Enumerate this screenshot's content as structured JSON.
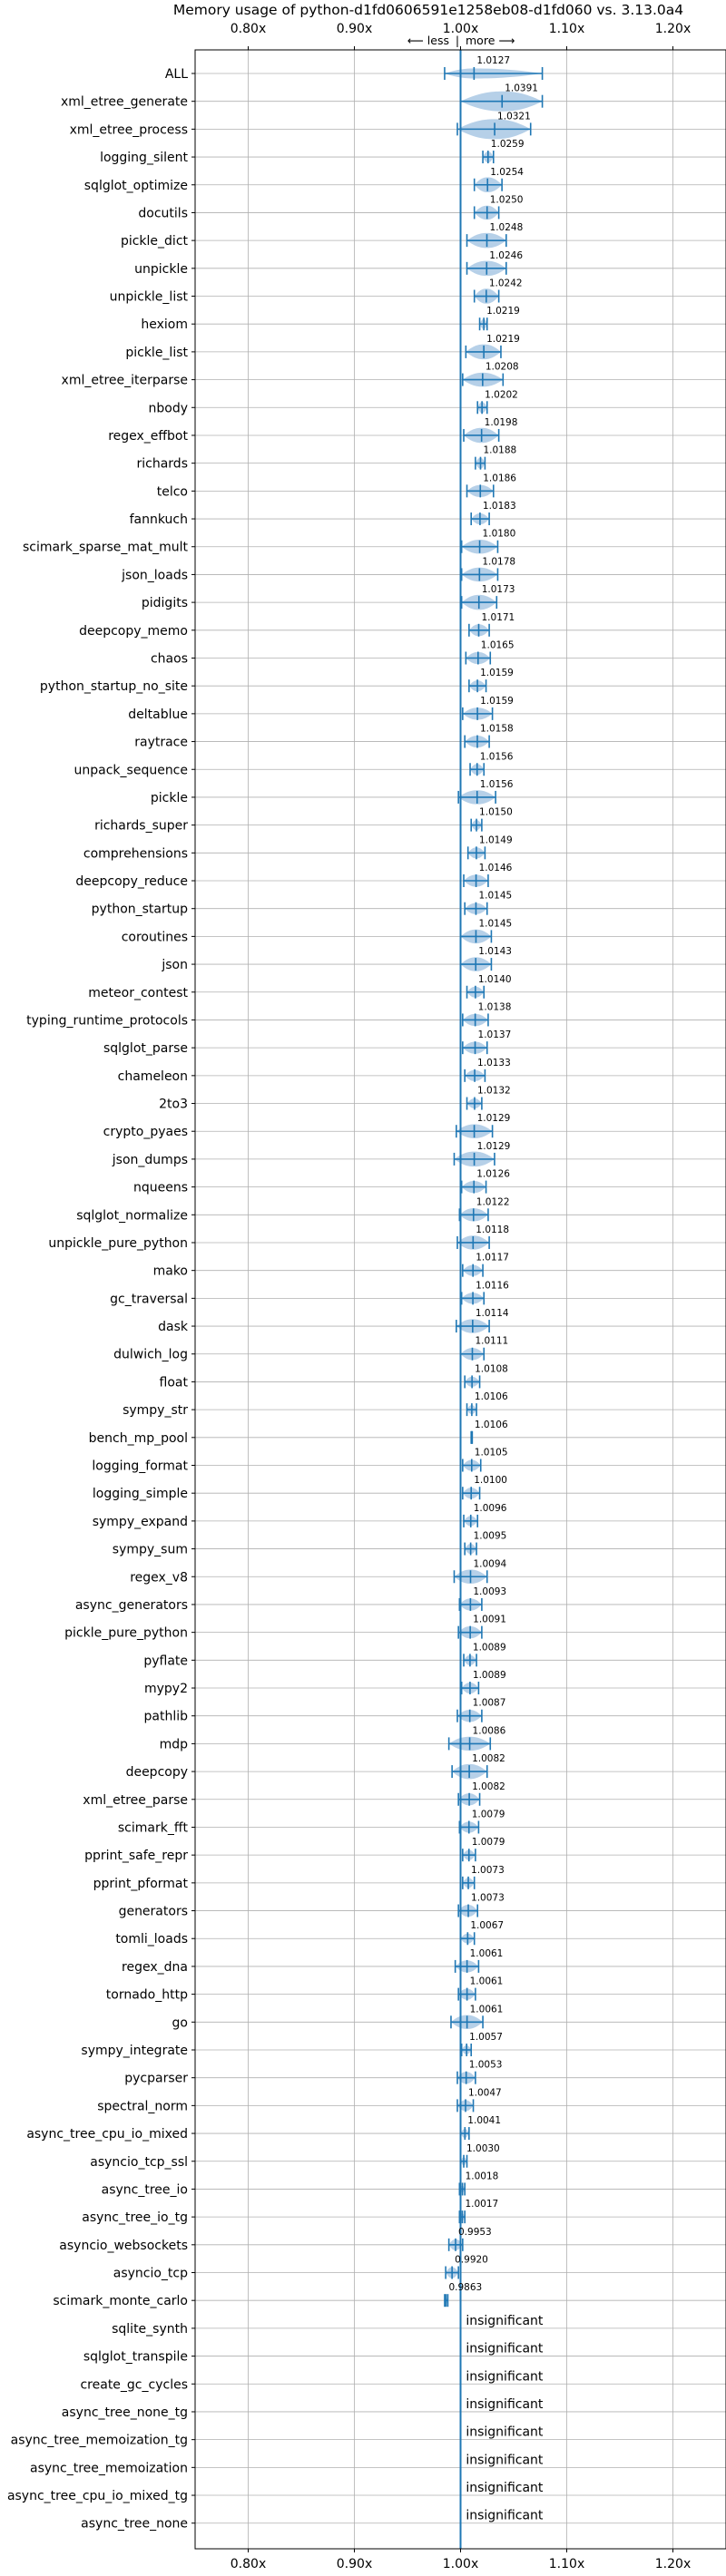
{
  "chart_data": {
    "type": "violin",
    "title": "Memory usage of python-d1fd0606591e1258eb08-d1fd060 vs. 3.13.0a4",
    "direction_hint": {
      "less": "⟵ less",
      "more": "more ⟶",
      "separator": "|"
    },
    "xlim": [
      0.75,
      1.25
    ],
    "xticks": [
      0.8,
      0.9,
      1.0,
      1.1,
      1.2
    ],
    "xtick_labels": [
      "0.80x",
      "0.90x",
      "1.00x",
      "1.10x",
      "1.20x"
    ],
    "reference_line": 1.0,
    "grid": true,
    "colors": {
      "violin": "#1f77b4",
      "fill": "#a9c8e4",
      "grid": "#b0b0b0",
      "axis": "#000000",
      "text": "#000000"
    },
    "benchmarks": [
      {
        "name": "ALL",
        "value": 1.0127,
        "label": "1.0127",
        "min": 0.985,
        "max": 1.077,
        "width": 0.5
      },
      {
        "name": "xml_etree_generate",
        "value": 1.0391,
        "label": "1.0391",
        "min": 1.0,
        "max": 1.077,
        "width": 1.0
      },
      {
        "name": "xml_etree_process",
        "value": 1.0321,
        "label": "1.0321",
        "min": 0.997,
        "max": 1.066,
        "width": 1.0
      },
      {
        "name": "logging_silent",
        "value": 1.0259,
        "label": "1.0259",
        "min": 1.021,
        "max": 1.031,
        "width": 0.55
      },
      {
        "name": "sqlglot_optimize",
        "value": 1.0254,
        "label": "1.0254",
        "min": 1.013,
        "max": 1.039,
        "width": 0.75
      },
      {
        "name": "docutils",
        "value": 1.025,
        "label": "1.0250",
        "min": 1.013,
        "max": 1.036,
        "width": 0.7
      },
      {
        "name": "pickle_dict",
        "value": 1.0248,
        "label": "1.0248",
        "min": 1.006,
        "max": 1.043,
        "width": 0.75
      },
      {
        "name": "unpickle",
        "value": 1.0246,
        "label": "1.0246",
        "min": 1.006,
        "max": 1.043,
        "width": 0.75
      },
      {
        "name": "unpickle_list",
        "value": 1.0242,
        "label": "1.0242",
        "min": 1.013,
        "max": 1.036,
        "width": 0.75
      },
      {
        "name": "hexiom",
        "value": 1.0219,
        "label": "1.0219",
        "min": 1.018,
        "max": 1.025,
        "width": 0.5
      },
      {
        "name": "pickle_list",
        "value": 1.0219,
        "label": "1.0219",
        "min": 1.005,
        "max": 1.038,
        "width": 0.75
      },
      {
        "name": "xml_etree_iterparse",
        "value": 1.0208,
        "label": "1.0208",
        "min": 1.002,
        "max": 1.04,
        "width": 0.7
      },
      {
        "name": "nbody",
        "value": 1.0202,
        "label": "1.0202",
        "min": 1.016,
        "max": 1.025,
        "width": 0.55
      },
      {
        "name": "regex_effbot",
        "value": 1.0198,
        "label": "1.0198",
        "min": 1.003,
        "max": 1.036,
        "width": 0.75
      },
      {
        "name": "richards",
        "value": 1.0188,
        "label": "1.0188",
        "min": 1.014,
        "max": 1.023,
        "width": 0.55
      },
      {
        "name": "telco",
        "value": 1.0186,
        "label": "1.0186",
        "min": 1.006,
        "max": 1.031,
        "width": 0.6
      },
      {
        "name": "fannkuch",
        "value": 1.0183,
        "label": "1.0183",
        "min": 1.01,
        "max": 1.027,
        "width": 0.55
      },
      {
        "name": "scimark_sparse_mat_mult",
        "value": 1.018,
        "label": "1.0180",
        "min": 1.001,
        "max": 1.035,
        "width": 0.7
      },
      {
        "name": "json_loads",
        "value": 1.0178,
        "label": "1.0178",
        "min": 1.001,
        "max": 1.035,
        "width": 0.7
      },
      {
        "name": "pidigits",
        "value": 1.0173,
        "label": "1.0173",
        "min": 1.001,
        "max": 1.034,
        "width": 0.75
      },
      {
        "name": "deepcopy_memo",
        "value": 1.0171,
        "label": "1.0171",
        "min": 1.008,
        "max": 1.027,
        "width": 0.6
      },
      {
        "name": "chaos",
        "value": 1.0165,
        "label": "1.0165",
        "min": 1.005,
        "max": 1.028,
        "width": 0.6
      },
      {
        "name": "python_startup_no_site",
        "value": 1.0159,
        "label": "1.0159",
        "min": 1.008,
        "max": 1.024,
        "width": 0.55
      },
      {
        "name": "deltablue",
        "value": 1.0159,
        "label": "1.0159",
        "min": 1.002,
        "max": 1.03,
        "width": 0.6
      },
      {
        "name": "raytrace",
        "value": 1.0158,
        "label": "1.0158",
        "min": 1.004,
        "max": 1.027,
        "width": 0.6
      },
      {
        "name": "unpack_sequence",
        "value": 1.0156,
        "label": "1.0156",
        "min": 1.009,
        "max": 1.022,
        "width": 0.55
      },
      {
        "name": "pickle",
        "value": 1.0156,
        "label": "1.0156",
        "min": 0.998,
        "max": 1.033,
        "width": 0.7
      },
      {
        "name": "richards_super",
        "value": 1.015,
        "label": "1.0150",
        "min": 1.01,
        "max": 1.02,
        "width": 0.5
      },
      {
        "name": "comprehensions",
        "value": 1.0149,
        "label": "1.0149",
        "min": 1.007,
        "max": 1.023,
        "width": 0.55
      },
      {
        "name": "deepcopy_reduce",
        "value": 1.0146,
        "label": "1.0146",
        "min": 1.003,
        "max": 1.026,
        "width": 0.6
      },
      {
        "name": "python_startup",
        "value": 1.0145,
        "label": "1.0145",
        "min": 1.004,
        "max": 1.025,
        "width": 0.55
      },
      {
        "name": "coroutines",
        "value": 1.0145,
        "label": "1.0145",
        "min": 1.0,
        "max": 1.029,
        "width": 0.7
      },
      {
        "name": "json",
        "value": 1.0143,
        "label": "1.0143",
        "min": 1.0,
        "max": 1.029,
        "width": 0.7
      },
      {
        "name": "meteor_contest",
        "value": 1.014,
        "label": "1.0140",
        "min": 1.006,
        "max": 1.022,
        "width": 0.55
      },
      {
        "name": "typing_runtime_protocols",
        "value": 1.0138,
        "label": "1.0138",
        "min": 1.002,
        "max": 1.026,
        "width": 0.6
      },
      {
        "name": "sqlglot_parse",
        "value": 1.0137,
        "label": "1.0137",
        "min": 1.002,
        "max": 1.025,
        "width": 0.6
      },
      {
        "name": "chameleon",
        "value": 1.0133,
        "label": "1.0133",
        "min": 1.004,
        "max": 1.023,
        "width": 0.55
      },
      {
        "name": "2to3",
        "value": 1.0132,
        "label": "1.0132",
        "min": 1.006,
        "max": 1.02,
        "width": 0.5
      },
      {
        "name": "crypto_pyaes",
        "value": 1.0129,
        "label": "1.0129",
        "min": 0.996,
        "max": 1.03,
        "width": 0.7
      },
      {
        "name": "json_dumps",
        "value": 1.0129,
        "label": "1.0129",
        "min": 0.994,
        "max": 1.032,
        "width": 0.75
      },
      {
        "name": "nqueens",
        "value": 1.0126,
        "label": "1.0126",
        "min": 1.001,
        "max": 1.024,
        "width": 0.6
      },
      {
        "name": "sqlglot_normalize",
        "value": 1.0122,
        "label": "1.0122",
        "min": 0.999,
        "max": 1.026,
        "width": 0.65
      },
      {
        "name": "unpickle_pure_python",
        "value": 1.0118,
        "label": "1.0118",
        "min": 0.997,
        "max": 1.027,
        "width": 0.7
      },
      {
        "name": "mako",
        "value": 1.0117,
        "label": "1.0117",
        "min": 1.002,
        "max": 1.021,
        "width": 0.55
      },
      {
        "name": "gc_traversal",
        "value": 1.0116,
        "label": "1.0116",
        "min": 1.001,
        "max": 1.022,
        "width": 0.55
      },
      {
        "name": "dask",
        "value": 1.0114,
        "label": "1.0114",
        "min": 0.996,
        "max": 1.027,
        "width": 0.7
      },
      {
        "name": "dulwich_log",
        "value": 1.0111,
        "label": "1.0111",
        "min": 1.0,
        "max": 1.022,
        "width": 0.6
      },
      {
        "name": "float",
        "value": 1.0108,
        "label": "1.0108",
        "min": 1.004,
        "max": 1.018,
        "width": 0.5
      },
      {
        "name": "sympy_str",
        "value": 1.0106,
        "label": "1.0106",
        "min": 1.006,
        "max": 1.015,
        "width": 0.45
      },
      {
        "name": "bench_mp_pool",
        "value": 1.0106,
        "label": "1.0106",
        "min": 1.01,
        "max": 1.011,
        "width": 0.1
      },
      {
        "name": "logging_format",
        "value": 1.0105,
        "label": "1.0105",
        "min": 1.002,
        "max": 1.019,
        "width": 0.55
      },
      {
        "name": "logging_simple",
        "value": 1.01,
        "label": "1.0100",
        "min": 1.002,
        "max": 1.018,
        "width": 0.55
      },
      {
        "name": "sympy_expand",
        "value": 1.0096,
        "label": "1.0096",
        "min": 1.003,
        "max": 1.016,
        "width": 0.5
      },
      {
        "name": "sympy_sum",
        "value": 1.0095,
        "label": "1.0095",
        "min": 1.004,
        "max": 1.015,
        "width": 0.5
      },
      {
        "name": "regex_v8",
        "value": 1.0094,
        "label": "1.0094",
        "min": 0.994,
        "max": 1.025,
        "width": 0.7
      },
      {
        "name": "async_generators",
        "value": 1.0093,
        "label": "1.0093",
        "min": 0.999,
        "max": 1.02,
        "width": 0.6
      },
      {
        "name": "pickle_pure_python",
        "value": 1.0091,
        "label": "1.0091",
        "min": 0.998,
        "max": 1.02,
        "width": 0.6
      },
      {
        "name": "pyflate",
        "value": 1.0089,
        "label": "1.0089",
        "min": 1.003,
        "max": 1.015,
        "width": 0.5
      },
      {
        "name": "mypy2",
        "value": 1.0089,
        "label": "1.0089",
        "min": 1.001,
        "max": 1.017,
        "width": 0.55
      },
      {
        "name": "pathlib",
        "value": 1.0087,
        "label": "1.0087",
        "min": 0.997,
        "max": 1.02,
        "width": 0.6
      },
      {
        "name": "mdp",
        "value": 1.0086,
        "label": "1.0086",
        "min": 0.989,
        "max": 1.028,
        "width": 0.7
      },
      {
        "name": "deepcopy",
        "value": 1.0082,
        "label": "1.0082",
        "min": 0.992,
        "max": 1.025,
        "width": 0.75
      },
      {
        "name": "xml_etree_parse",
        "value": 1.0082,
        "label": "1.0082",
        "min": 0.998,
        "max": 1.018,
        "width": 0.6
      },
      {
        "name": "scimark_fft",
        "value": 1.0079,
        "label": "1.0079",
        "min": 0.999,
        "max": 1.017,
        "width": 0.55
      },
      {
        "name": "pprint_safe_repr",
        "value": 1.0079,
        "label": "1.0079",
        "min": 1.002,
        "max": 1.014,
        "width": 0.5
      },
      {
        "name": "pprint_pformat",
        "value": 1.0073,
        "label": "1.0073",
        "min": 1.002,
        "max": 1.013,
        "width": 0.5
      },
      {
        "name": "generators",
        "value": 1.0073,
        "label": "1.0073",
        "min": 0.998,
        "max": 1.016,
        "width": 0.6
      },
      {
        "name": "tomli_loads",
        "value": 1.0067,
        "label": "1.0067",
        "min": 1.0,
        "max": 1.013,
        "width": 0.5
      },
      {
        "name": "regex_dna",
        "value": 1.0061,
        "label": "1.0061",
        "min": 0.995,
        "max": 1.017,
        "width": 0.6
      },
      {
        "name": "tornado_http",
        "value": 1.0061,
        "label": "1.0061",
        "min": 0.998,
        "max": 1.014,
        "width": 0.55
      },
      {
        "name": "go",
        "value": 1.0061,
        "label": "1.0061",
        "min": 0.991,
        "max": 1.021,
        "width": 0.7
      },
      {
        "name": "sympy_integrate",
        "value": 1.0057,
        "label": "1.0057",
        "min": 1.001,
        "max": 1.01,
        "width": 0.45
      },
      {
        "name": "pycparser",
        "value": 1.0053,
        "label": "1.0053",
        "min": 0.997,
        "max": 1.014,
        "width": 0.6
      },
      {
        "name": "spectral_norm",
        "value": 1.0047,
        "label": "1.0047",
        "min": 0.997,
        "max": 1.012,
        "width": 0.55
      },
      {
        "name": "async_tree_cpu_io_mixed",
        "value": 1.0041,
        "label": "1.0041",
        "min": 1.0,
        "max": 1.008,
        "width": 0.45
      },
      {
        "name": "asyncio_tcp_ssl",
        "value": 1.003,
        "label": "1.0030",
        "min": 1.0,
        "max": 1.006,
        "width": 0.4
      },
      {
        "name": "async_tree_io",
        "value": 1.0018,
        "label": "1.0018",
        "min": 0.999,
        "max": 1.004,
        "width": 0.35
      },
      {
        "name": "async_tree_io_tg",
        "value": 1.0017,
        "label": "1.0017",
        "min": 0.999,
        "max": 1.004,
        "width": 0.35
      },
      {
        "name": "asyncio_websockets",
        "value": 0.9953,
        "label": "0.9953",
        "min": 0.989,
        "max": 1.002,
        "width": 0.55
      },
      {
        "name": "asyncio_tcp",
        "value": 0.992,
        "label": "0.9920",
        "min": 0.986,
        "max": 0.998,
        "width": 0.55
      },
      {
        "name": "scimark_monte_carlo",
        "value": 0.9863,
        "label": "0.9863",
        "min": 0.985,
        "max": 0.988,
        "width": 0.3
      },
      {
        "name": "sqlite_synth",
        "value": null,
        "label": "insignificant"
      },
      {
        "name": "sqlglot_transpile",
        "value": null,
        "label": "insignificant"
      },
      {
        "name": "create_gc_cycles",
        "value": null,
        "label": "insignificant"
      },
      {
        "name": "async_tree_none_tg",
        "value": null,
        "label": "insignificant"
      },
      {
        "name": "async_tree_memoization_tg",
        "value": null,
        "label": "insignificant"
      },
      {
        "name": "async_tree_memoization",
        "value": null,
        "label": "insignificant"
      },
      {
        "name": "async_tree_cpu_io_mixed_tg",
        "value": null,
        "label": "insignificant"
      },
      {
        "name": "async_tree_none",
        "value": null,
        "label": "insignificant"
      }
    ]
  }
}
